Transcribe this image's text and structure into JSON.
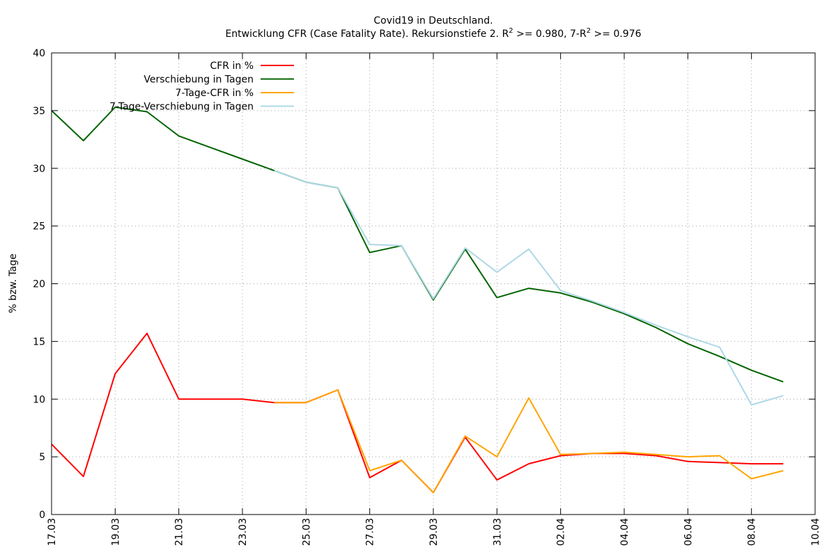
{
  "chart_data": {
    "type": "line",
    "title": "Covid19 in Deutschland.",
    "subtitle_main": "Entwicklung CFR (Case Fatality Rate). Rekursionstiefe 2. R",
    "subtitle_sup1": "2",
    "subtitle_mid": " >= 0.980, 7-R",
    "subtitle_sup2": "2",
    "subtitle_end": " >= 0.976",
    "xlabel": "",
    "ylabel": "% bzw. Tage",
    "ylim": [
      0,
      40
    ],
    "yticks": [
      "0",
      "5",
      "10",
      "15",
      "20",
      "25",
      "30",
      "35",
      "40"
    ],
    "xlim": [
      "17.03",
      "10.04"
    ],
    "xticks": [
      "17.03",
      "19.03",
      "21.03",
      "23.03",
      "25.03",
      "27.03",
      "29.03",
      "31.03",
      "02.04",
      "04.04",
      "06.04",
      "08.04",
      "10.04"
    ],
    "grid": true,
    "legend_position": "top-left",
    "series": [
      {
        "name": "CFR in %",
        "color": "#ff0000",
        "x": [
          "17.03",
          "18.03",
          "19.03",
          "20.03",
          "21.03",
          "22.03",
          "23.03",
          "24.03",
          "25.03",
          "26.03",
          "27.03",
          "28.03",
          "29.03",
          "30.03",
          "31.03",
          "01.04",
          "02.04",
          "03.04",
          "04.04",
          "05.04",
          "06.04",
          "07.04",
          "08.04",
          "09.04"
        ],
        "values": [
          6.1,
          3.3,
          12.2,
          15.7,
          10.0,
          10.0,
          10.0,
          9.7,
          9.7,
          10.8,
          3.2,
          4.7,
          1.9,
          6.7,
          3.0,
          4.4,
          5.1,
          5.3,
          5.3,
          5.1,
          4.6,
          4.5,
          4.4,
          4.4
        ]
      },
      {
        "name": "Verschiebung in Tagen",
        "color": "#006400",
        "x": [
          "17.03",
          "18.03",
          "19.03",
          "20.03",
          "21.03",
          "22.03",
          "23.03",
          "24.03",
          "25.03",
          "26.03",
          "27.03",
          "28.03",
          "29.03",
          "30.03",
          "31.03",
          "01.04",
          "02.04",
          "03.04",
          "04.04",
          "05.04",
          "06.04",
          "07.04",
          "08.04",
          "09.04"
        ],
        "values": [
          35.0,
          32.4,
          35.3,
          34.9,
          32.8,
          31.8,
          30.8,
          29.8,
          28.8,
          28.3,
          22.7,
          23.3,
          18.6,
          23.0,
          18.8,
          19.6,
          19.2,
          18.4,
          17.4,
          16.2,
          14.8,
          13.7,
          12.5,
          11.5
        ]
      },
      {
        "name": "7-Tage-CFR in %",
        "color": "#ffa500",
        "x": [
          "24.03",
          "25.03",
          "26.03",
          "27.03",
          "28.03",
          "29.03",
          "30.03",
          "31.03",
          "01.04",
          "02.04",
          "03.04",
          "04.04",
          "05.04",
          "06.04",
          "07.04",
          "08.04",
          "09.04"
        ],
        "values": [
          9.7,
          9.7,
          10.8,
          3.8,
          4.7,
          1.9,
          6.8,
          5.0,
          10.1,
          5.2,
          5.3,
          5.4,
          5.2,
          5.0,
          5.1,
          3.1,
          3.8
        ]
      },
      {
        "name": "7-Tage-Verschiebung in Tagen",
        "color": "#add8e6",
        "x": [
          "24.03",
          "25.03",
          "26.03",
          "27.03",
          "28.03",
          "29.03",
          "30.03",
          "31.03",
          "01.04",
          "02.04",
          "03.04",
          "04.04",
          "05.04",
          "06.04",
          "07.04",
          "08.04",
          "09.04"
        ],
        "values": [
          29.8,
          28.8,
          28.3,
          23.4,
          23.3,
          18.7,
          23.1,
          21.0,
          23.0,
          19.4,
          18.5,
          17.5,
          16.4,
          15.4,
          14.5,
          9.5,
          10.3
        ]
      }
    ]
  }
}
